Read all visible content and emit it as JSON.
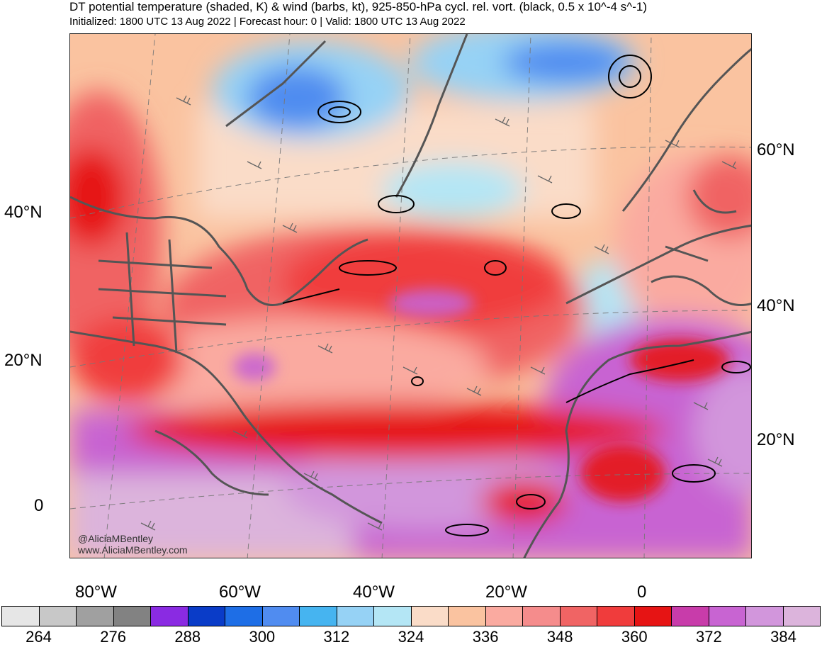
{
  "title": "DT potential temperature (shaded, K) & wind (barbs, kt), 925-850-hPa cycl. rel. vort. (black, 0.5 x 10^-4 s^-1)",
  "subtitle": "Initialized: 1800 UTC 13 Aug 2022 | Forecast hour: 0 | Valid: 1800 UTC 13 Aug 2022",
  "credits": [
    "@AliciaMBentley",
    "www.AliciaMBentley.com"
  ],
  "lat_labels_left": [
    "40°N",
    "20°N",
    "0"
  ],
  "lat_labels_right": [
    "60°N",
    "40°N",
    "20°N"
  ],
  "lon_labels": [
    "80°W",
    "60°W",
    "40°W",
    "20°W",
    "0"
  ],
  "colorbar": {
    "colors": [
      "#e6e6e6",
      "#c8c8c8",
      "#a0a0a0",
      "#828282",
      "#8a2be2",
      "#0a3cc8",
      "#1e6ee6",
      "#508cf0",
      "#46b4f0",
      "#96d2f5",
      "#b4e6f5",
      "#fadcc8",
      "#fac3a0",
      "#faaaa0",
      "#f58c8c",
      "#f06464",
      "#f03c3c",
      "#e61414",
      "#c83caa",
      "#c864d2",
      "#d296dc",
      "#dcb4dc"
    ],
    "tick_labels": [
      "264",
      "276",
      "288",
      "300",
      "312",
      "324",
      "336",
      "348",
      "360",
      "372",
      "384"
    ]
  }
}
